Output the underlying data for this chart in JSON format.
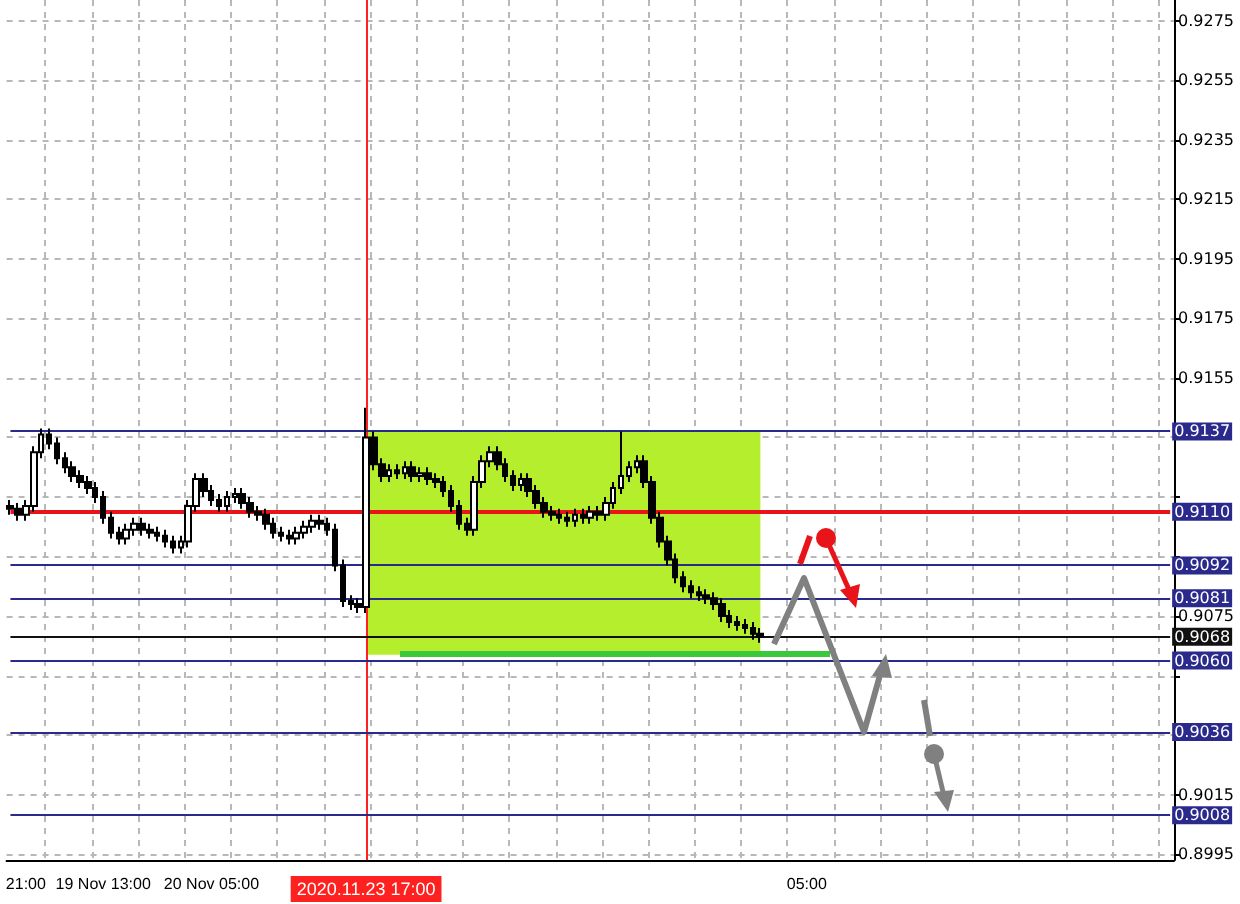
{
  "chart_data": {
    "type": "candlestick",
    "categories": [
      null,
      null,
      "21:00",
      null,
      null,
      null,
      null,
      null,
      null,
      null,
      null,
      null,
      "19 Nov 13:00",
      null,
      null,
      null,
      null,
      null,
      null,
      null,
      null,
      null,
      null,
      null,
      null,
      null,
      "20 Nov 05:00",
      null,
      null,
      null,
      null,
      null,
      null,
      null,
      null,
      null,
      null,
      null,
      null,
      null,
      null,
      null,
      null,
      null,
      null,
      null,
      "2020.11.23 17:00",
      null,
      null,
      null,
      null,
      null,
      null,
      null,
      null,
      null,
      null,
      null,
      null,
      null,
      null,
      null,
      null,
      null,
      null,
      null,
      null,
      null,
      null,
      null,
      null,
      null,
      null,
      null,
      null,
      null,
      null,
      null,
      null,
      null,
      null,
      null,
      null,
      null,
      null,
      null,
      null,
      null,
      null,
      null,
      null,
      null,
      null,
      null,
      null,
      null,
      null,
      null,
      null,
      null,
      null,
      null,
      null,
      "05:00",
      null,
      null,
      null,
      null,
      null,
      null,
      null,
      null,
      null,
      null,
      null,
      null,
      null,
      null,
      null,
      null,
      null,
      null,
      null,
      null,
      null,
      null,
      null,
      null,
      null,
      null,
      null,
      null,
      null,
      null,
      null,
      null,
      null,
      null,
      null,
      null,
      null,
      null,
      null,
      null,
      null,
      null,
      null,
      null,
      null,
      null,
      null
    ],
    "ohlc": [
      [
        0.9112,
        0.9114,
        0.9109,
        0.9111
      ],
      [
        0.9111,
        0.9113,
        0.9107,
        0.9109
      ],
      [
        0.9109,
        0.9114,
        0.9107,
        0.9112
      ],
      [
        0.9112,
        0.9132,
        0.911,
        0.913
      ],
      [
        0.913,
        0.9138,
        0.9128,
        0.9136
      ],
      [
        0.9136,
        0.9138,
        0.9131,
        0.9133
      ],
      [
        0.9133,
        0.9135,
        0.9126,
        0.9128
      ],
      [
        0.9128,
        0.913,
        0.9123,
        0.9125
      ],
      [
        0.9125,
        0.9127,
        0.912,
        0.9122
      ],
      [
        0.9122,
        0.9124,
        0.9118,
        0.912
      ],
      [
        0.912,
        0.9122,
        0.9116,
        0.9118
      ],
      [
        0.9118,
        0.912,
        0.9113,
        0.9115
      ],
      [
        0.9115,
        0.9117,
        0.9106,
        0.9108
      ],
      [
        0.9108,
        0.911,
        0.9101,
        0.9103
      ],
      [
        0.9103,
        0.9105,
        0.9099,
        0.9101
      ],
      [
        0.9101,
        0.9106,
        0.9099,
        0.9104
      ],
      [
        0.9104,
        0.9108,
        0.9102,
        0.9106
      ],
      [
        0.9106,
        0.9108,
        0.9102,
        0.9104
      ],
      [
        0.9104,
        0.9106,
        0.9101,
        0.9103
      ],
      [
        0.9103,
        0.9105,
        0.91,
        0.9102
      ],
      [
        0.9102,
        0.9104,
        0.9098,
        0.91
      ],
      [
        0.91,
        0.9102,
        0.9096,
        0.9098
      ],
      [
        0.9098,
        0.9102,
        0.9096,
        0.91
      ],
      [
        0.91,
        0.9114,
        0.9098,
        0.9112
      ],
      [
        0.9112,
        0.9123,
        0.911,
        0.9121
      ],
      [
        0.9121,
        0.9123,
        0.9115,
        0.9117
      ],
      [
        0.9117,
        0.9119,
        0.9112,
        0.9114
      ],
      [
        0.9114,
        0.9116,
        0.911,
        0.9112
      ],
      [
        0.9112,
        0.9117,
        0.911,
        0.9115
      ],
      [
        0.9115,
        0.9118,
        0.9113,
        0.9116
      ],
      [
        0.9116,
        0.9118,
        0.9111,
        0.9113
      ],
      [
        0.9113,
        0.9115,
        0.9108,
        0.911
      ],
      [
        0.911,
        0.9112,
        0.9107,
        0.9109
      ],
      [
        0.9109,
        0.9111,
        0.9104,
        0.9106
      ],
      [
        0.9106,
        0.9108,
        0.9101,
        0.9103
      ],
      [
        0.9103,
        0.9105,
        0.91,
        0.9102
      ],
      [
        0.9102,
        0.9104,
        0.9099,
        0.9101
      ],
      [
        0.9101,
        0.9105,
        0.9099,
        0.9103
      ],
      [
        0.9103,
        0.9107,
        0.9101,
        0.9105
      ],
      [
        0.9105,
        0.9109,
        0.9103,
        0.9107
      ],
      [
        0.9107,
        0.9109,
        0.9104,
        0.9106
      ],
      [
        0.9106,
        0.9108,
        0.9102,
        0.9104
      ],
      [
        0.9104,
        0.9106,
        0.909,
        0.9092
      ],
      [
        0.9092,
        0.9094,
        0.9078,
        0.908
      ],
      [
        0.908,
        0.9082,
        0.9077,
        0.9079
      ],
      [
        0.9079,
        0.9081,
        0.9076,
        0.9078
      ],
      [
        0.9078,
        0.9145,
        0.9076,
        0.9135
      ],
      [
        0.9135,
        0.9137,
        0.9124,
        0.9126
      ],
      [
        0.9126,
        0.9128,
        0.912,
        0.9122
      ],
      [
        0.9122,
        0.9126,
        0.912,
        0.9124
      ],
      [
        0.9124,
        0.9126,
        0.9121,
        0.9123
      ],
      [
        0.9123,
        0.9127,
        0.9121,
        0.9125
      ],
      [
        0.9125,
        0.9127,
        0.912,
        0.9122
      ],
      [
        0.9122,
        0.9125,
        0.912,
        0.9123
      ],
      [
        0.9123,
        0.9125,
        0.9119,
        0.9121
      ],
      [
        0.9121,
        0.9123,
        0.9118,
        0.912
      ],
      [
        0.912,
        0.9122,
        0.9115,
        0.9117
      ],
      [
        0.9117,
        0.9119,
        0.911,
        0.9112
      ],
      [
        0.9112,
        0.9114,
        0.9104,
        0.9106
      ],
      [
        0.9106,
        0.9108,
        0.9102,
        0.9104
      ],
      [
        0.9104,
        0.9122,
        0.9102,
        0.912
      ],
      [
        0.912,
        0.9129,
        0.9118,
        0.9127
      ],
      [
        0.9127,
        0.9132,
        0.9125,
        0.913
      ],
      [
        0.913,
        0.9132,
        0.9124,
        0.9126
      ],
      [
        0.9126,
        0.9128,
        0.912,
        0.9122
      ],
      [
        0.9122,
        0.9124,
        0.9117,
        0.9119
      ],
      [
        0.9119,
        0.9123,
        0.9117,
        0.9121
      ],
      [
        0.9121,
        0.9123,
        0.9115,
        0.9117
      ],
      [
        0.9117,
        0.9119,
        0.9111,
        0.9113
      ],
      [
        0.9113,
        0.9115,
        0.9108,
        0.911
      ],
      [
        0.911,
        0.9112,
        0.9107,
        0.9109
      ],
      [
        0.9109,
        0.9111,
        0.9106,
        0.9108
      ],
      [
        0.9108,
        0.911,
        0.9105,
        0.9107
      ],
      [
        0.9107,
        0.9111,
        0.9105,
        0.9109
      ],
      [
        0.9109,
        0.9111,
        0.9106,
        0.9108
      ],
      [
        0.9108,
        0.9112,
        0.9106,
        0.911
      ],
      [
        0.911,
        0.9112,
        0.9107,
        0.9109
      ],
      [
        0.9109,
        0.9115,
        0.9107,
        0.9113
      ],
      [
        0.9113,
        0.912,
        0.9111,
        0.9118
      ],
      [
        0.9118,
        0.9137,
        0.9116,
        0.9122
      ],
      [
        0.9122,
        0.9127,
        0.912,
        0.9125
      ],
      [
        0.9125,
        0.9129,
        0.9123,
        0.9127
      ],
      [
        0.9127,
        0.9129,
        0.9118,
        0.912
      ],
      [
        0.912,
        0.9122,
        0.9106,
        0.9108
      ],
      [
        0.9108,
        0.911,
        0.9098,
        0.91
      ],
      [
        0.91,
        0.9102,
        0.9092,
        0.9094
      ],
      [
        0.9094,
        0.9096,
        0.9086,
        0.9088
      ],
      [
        0.9088,
        0.909,
        0.9083,
        0.9085
      ],
      [
        0.9085,
        0.9087,
        0.9081,
        0.9083
      ],
      [
        0.9083,
        0.9085,
        0.908,
        0.9082
      ],
      [
        0.9082,
        0.9084,
        0.9079,
        0.9081
      ],
      [
        0.9081,
        0.9083,
        0.9077,
        0.9079
      ],
      [
        0.9079,
        0.9081,
        0.9073,
        0.9075
      ],
      [
        0.9075,
        0.9077,
        0.9071,
        0.9073
      ],
      [
        0.9073,
        0.9075,
        0.907,
        0.9072
      ],
      [
        0.9072,
        0.9074,
        0.9069,
        0.9071
      ],
      [
        0.9071,
        0.9073,
        0.9067,
        0.9069
      ],
      [
        0.9069,
        0.9071,
        0.9066,
        0.9068
      ],
      null,
      null,
      null,
      null,
      null,
      null,
      null,
      null,
      null,
      null,
      null,
      null,
      null,
      null,
      null,
      null,
      null,
      null,
      null,
      null,
      null,
      null,
      null,
      null,
      null,
      null,
      null,
      null,
      null,
      null,
      null,
      null,
      null,
      null,
      null,
      null,
      null,
      null,
      null,
      null,
      null,
      null,
      null,
      null,
      null,
      null,
      null,
      null,
      null,
      null,
      null,
      null,
      null
    ],
    "color": "#000000",
    "ylim": [
      0.8993,
      0.9282
    ],
    "yticks": [
      0.8995,
      0.9015,
      {
        "value": 0.9035,
        "label": null
      },
      {
        "value": 0.9055,
        "label": null
      },
      0.9075,
      {
        "value": 0.9095,
        "label": null
      },
      {
        "value": 0.9115,
        "label": null
      },
      {
        "value": 0.9135,
        "label": null
      },
      0.9155,
      0.9175,
      0.9195,
      0.9215,
      0.9235,
      0.9255,
      0.9275
    ],
    "grid": true,
    "ref_lines": [
      {
        "axis": "x",
        "value": "2020.11.23 17:00",
        "color": "#ff2020"
      },
      {
        "axis": "y",
        "value": 0.9137,
        "label": "0.9137",
        "color": "#2a2a8c"
      },
      {
        "axis": "y",
        "value": 0.911,
        "label": "0.9110",
        "color": "#e8141a"
      },
      {
        "axis": "y",
        "value": 0.9092,
        "label": "0.9092",
        "color": "#2a2a8c"
      },
      {
        "axis": "y",
        "value": 0.9081,
        "label": "0.9081",
        "color": "#2a2a8c"
      },
      {
        "axis": "y",
        "value": 0.9068,
        "label": "0.9068",
        "color": "#111111"
      },
      {
        "axis": "y",
        "value": 0.906,
        "label": "0.9060",
        "color": "#2a2a8c"
      },
      {
        "axis": "y",
        "value": 0.9036,
        "label": "0.9036",
        "color": "#2a2a8c"
      },
      {
        "axis": "y",
        "value": 0.9008,
        "label": "0.9008",
        "color": "#2a2a8c"
      }
    ],
    "bands": [
      {
        "axis": "y",
        "from": 0.9062,
        "to": 0.9137,
        "color": "#b4ee2c"
      }
    ]
  }
}
